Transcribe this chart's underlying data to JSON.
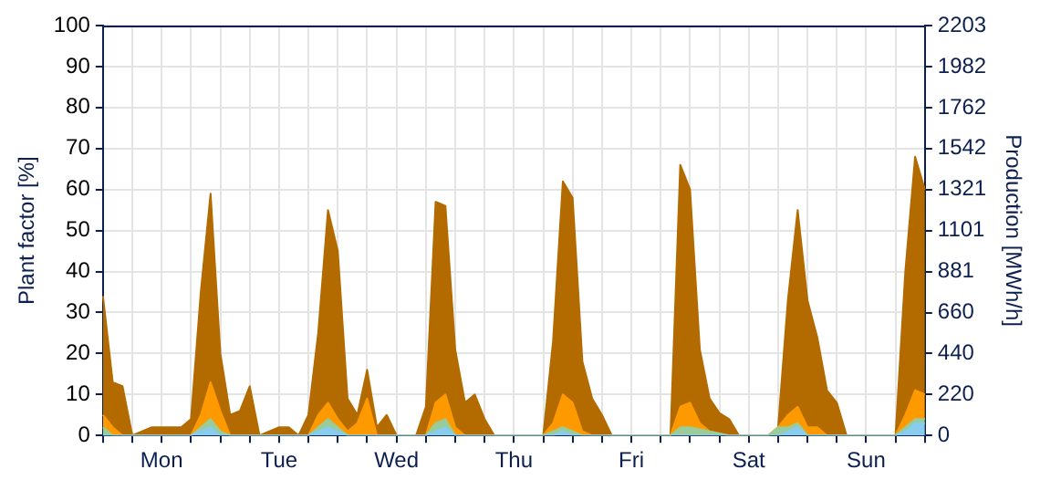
{
  "chart_data": {
    "type": "area",
    "stacked": true,
    "ylabel": "Plant factor [%]",
    "y2label": "Production [MWh/h]",
    "categories": [
      null,
      null,
      null,
      null,
      null,
      null,
      "Mon",
      null,
      null,
      null,
      null,
      null,
      null,
      null,
      null,
      null,
      null,
      null,
      "Tue",
      null,
      null,
      null,
      null,
      null,
      null,
      null,
      null,
      null,
      null,
      null,
      "Wed",
      null,
      null,
      null,
      null,
      null,
      null,
      null,
      null,
      null,
      null,
      null,
      "Thu",
      null,
      null,
      null,
      null,
      null,
      null,
      null,
      null,
      null,
      null,
      null,
      "Fri",
      null,
      null,
      null,
      null,
      null,
      null,
      null,
      null,
      null,
      null,
      null,
      "Sat",
      null,
      null,
      null,
      null,
      null,
      null,
      null,
      null,
      null,
      null,
      null,
      "Sun",
      null,
      null,
      null,
      null,
      null,
      null
    ],
    "series": [
      {
        "color": "#88ccee",
        "values": [
          0,
          0,
          0,
          0,
          0,
          0,
          0,
          0,
          0,
          0,
          1,
          2,
          0,
          0,
          0,
          0,
          0,
          0,
          0,
          0,
          0,
          0,
          1,
          2,
          1,
          0,
          0,
          0,
          0,
          0,
          0,
          0,
          0,
          0,
          1,
          2,
          0,
          0,
          0,
          0,
          0,
          0,
          0,
          0,
          0,
          0,
          0,
          1,
          0,
          0,
          0,
          0,
          0,
          0,
          0,
          0,
          0,
          0,
          0,
          0,
          0,
          0,
          0,
          0,
          0,
          0,
          0,
          0,
          0,
          0,
          1,
          2,
          0,
          0,
          0,
          0,
          0,
          0,
          0,
          0,
          0,
          0,
          1,
          3,
          3
        ]
      },
      {
        "color": "#99cc99",
        "values": [
          2,
          0,
          0,
          0,
          0,
          0,
          0,
          0,
          0,
          0,
          1,
          2,
          1,
          0,
          0,
          0,
          0,
          0,
          0,
          0,
          0,
          0,
          1,
          2,
          1,
          0,
          0,
          0,
          0,
          0,
          0,
          0,
          0,
          0,
          2,
          2,
          0,
          0,
          0,
          0,
          0,
          0,
          0,
          0,
          0,
          0,
          1,
          1,
          1,
          0,
          0,
          0,
          0,
          0,
          0,
          0,
          0,
          0,
          0,
          2,
          2,
          1.5,
          1,
          0.5,
          0,
          0,
          0,
          0,
          0,
          2,
          1,
          1,
          0,
          0,
          0,
          0,
          0,
          0,
          0,
          0,
          0,
          0,
          1,
          1,
          1
        ]
      },
      {
        "color": "#ff9900",
        "values": [
          3,
          2,
          0,
          0,
          0,
          0,
          0,
          0,
          0,
          0,
          3,
          9,
          5,
          0,
          0,
          0,
          0,
          0,
          0,
          0,
          0,
          0,
          3,
          4,
          2,
          1,
          3,
          9,
          0,
          0,
          0,
          0,
          0,
          0,
          5,
          6,
          2,
          0,
          0,
          0,
          0,
          0,
          0,
          0,
          0,
          0,
          2,
          8,
          7,
          1,
          0,
          0,
          0,
          0,
          0,
          0,
          0,
          0,
          0,
          5,
          6,
          1.5,
          0,
          0,
          0,
          0,
          0,
          0,
          0,
          0,
          3,
          4,
          2,
          2,
          0,
          0,
          0,
          0,
          0,
          0,
          0,
          0,
          3,
          7,
          6
        ]
      },
      {
        "color": "#b36b00",
        "values": [
          29,
          11,
          12,
          0,
          1,
          2,
          2,
          2,
          2,
          4,
          30,
          46,
          14,
          5,
          6,
          12,
          0,
          1,
          2,
          2,
          0,
          5,
          20,
          47,
          41,
          8,
          2,
          7,
          2,
          5,
          0,
          0,
          0,
          7,
          49,
          46,
          19,
          8,
          10,
          4,
          0,
          0,
          0,
          0,
          0,
          0,
          20,
          52,
          50,
          17,
          9,
          5,
          0,
          0,
          0,
          0,
          0,
          0,
          0,
          59,
          52,
          18,
          8,
          5,
          4,
          0,
          0,
          0,
          0,
          0,
          28,
          48,
          31,
          22,
          11,
          8,
          0,
          0,
          0,
          0,
          0,
          0,
          35,
          57,
          50
        ]
      }
    ],
    "ylim": [
      0,
      100
    ],
    "yticks": [
      0,
      10,
      20,
      30,
      40,
      50,
      60,
      70,
      80,
      90,
      100
    ],
    "y2lim": [
      0,
      2203
    ],
    "y2ticks": [
      0,
      220,
      440,
      660,
      881,
      1101,
      1321,
      1542,
      1762,
      1982,
      2203
    ],
    "grid": true,
    "legend": false
  }
}
